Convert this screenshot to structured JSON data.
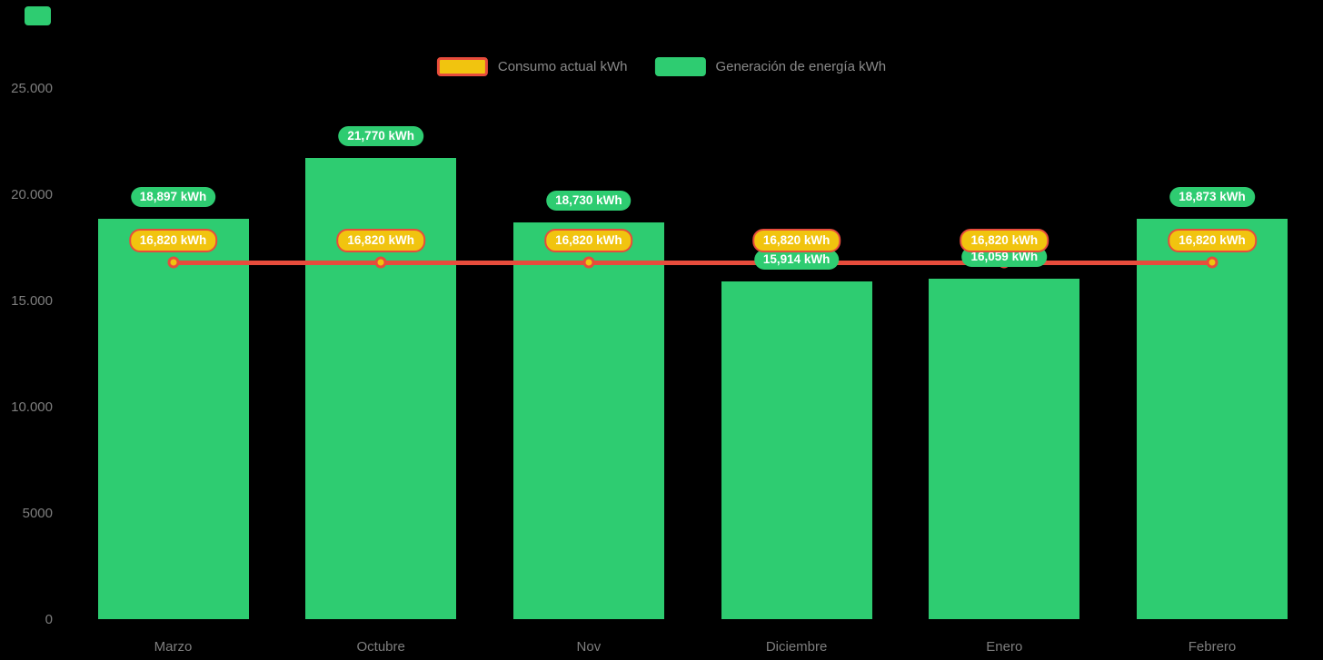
{
  "decor": {
    "top_left_marker_color": "#2ECC71"
  },
  "legend": {
    "text_color": "#8A8A8A",
    "items": [
      {
        "label": "Consumo actual kWh",
        "swatch_fill": "#F1C40F",
        "swatch_border": "#E74C3C"
      },
      {
        "label": "Generación de energía kWh",
        "swatch_fill": "#2ECC71",
        "swatch_border": "#2ECC71"
      }
    ]
  },
  "chart_data": {
    "type": "bar",
    "categories": [
      "Marzo",
      "Octubre",
      "Nov",
      "Diciembre",
      "Enero",
      "Febrero"
    ],
    "series": [
      {
        "name": "Generación de energía kWh",
        "type": "bar",
        "color": "#2ECC71",
        "values": [
          18897,
          21770,
          18730,
          15914,
          16059,
          18873
        ],
        "labels": [
          "18,897 kWh",
          "21,770 kWh",
          "18,730 kWh",
          "15,914 kWh",
          "16,059 kWh",
          "18,873 kWh"
        ],
        "label_bg": "#2ECC71",
        "label_text_color": "#FFFFFF"
      },
      {
        "name": "Consumo actual kWh",
        "type": "line",
        "color": "#E74C3C",
        "point_fill": "#F1C40F",
        "point_border": "#E74C3C",
        "values": [
          16820,
          16820,
          16820,
          16820,
          16820,
          16820
        ],
        "labels": [
          "16,820 kWh",
          "16,820 kWh",
          "16,820 kWh",
          "16,820 kWh",
          "16,820 kWh",
          "16,820 kWh"
        ],
        "label_bg": "#F1C40F",
        "label_border": "#E74C3C",
        "label_text_color": "#FFFFFF"
      }
    ],
    "y_axis": {
      "min": 0,
      "max": 25000,
      "tick_values": [
        25000,
        20000,
        15000,
        10000,
        5000,
        0
      ],
      "tick_labels": [
        "25.000",
        "20.000",
        "15.000",
        "10.000",
        "5000",
        "0"
      ],
      "text_color": "#7E7E7E"
    },
    "x_axis": {
      "text_color": "#7E7E7E"
    },
    "grid": false,
    "legend_position": "top-center",
    "background": "#000000"
  }
}
